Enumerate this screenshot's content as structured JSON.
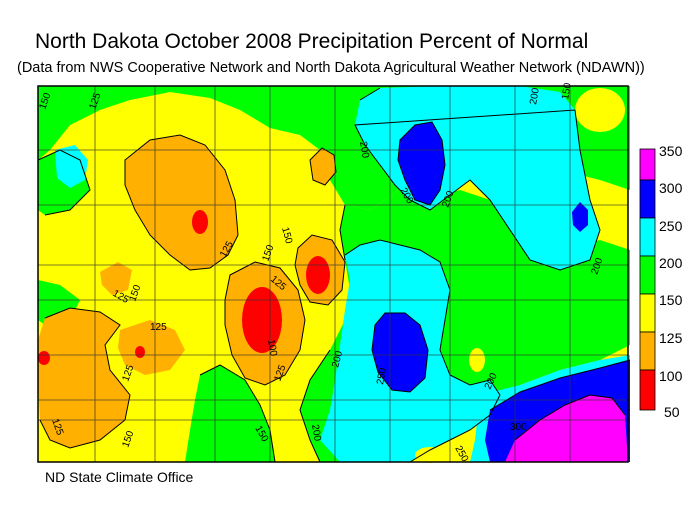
{
  "title": "North Dakota October 2008 Precipitation Percent of Normal",
  "subtitle": "(Data from NWS Cooperative Network and North Dakota Agricultural Weather Network (NDAWN))",
  "credit": "ND State Climate Office",
  "legend": {
    "bins": [
      {
        "label": "350",
        "color": "#ff00ff"
      },
      {
        "label": "300",
        "color": "#0000ff"
      },
      {
        "label": "250",
        "color": "#00ffff"
      },
      {
        "label": "200",
        "color": "#00ff00"
      },
      {
        "label": "150",
        "color": "#ffff00"
      },
      {
        "label": "125",
        "color": "#ffb000"
      },
      {
        "label": "100",
        "color": "#ff0000"
      },
      {
        "label": "50",
        "color": ""
      }
    ]
  },
  "contour_labels": [
    "150",
    "125",
    "125",
    "150",
    "125",
    "150",
    "125",
    "150",
    "125",
    "100",
    "125",
    "125",
    "125",
    "150",
    "150",
    "200",
    "200",
    "200",
    "200",
    "200",
    "200",
    "200",
    "200",
    "300",
    "150",
    "250",
    "250"
  ]
}
